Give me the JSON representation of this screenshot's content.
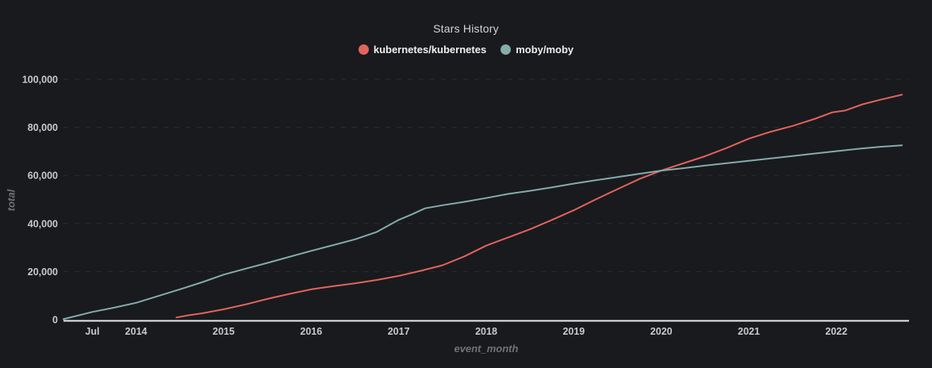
{
  "title": "Stars History",
  "axes": {
    "y_label": "total",
    "x_label": "event_month"
  },
  "colors": {
    "background": "#191a1e",
    "title": "#d4d5d7",
    "legend_text": "#efefef",
    "tick_text": "#c8c9cb",
    "axis_line": "#ecebeb",
    "gridline": "#2c2d31",
    "axis_name": "#717276",
    "kubernetes": "#e0645c",
    "moby": "#83acaa"
  },
  "chart_data": {
    "type": "line",
    "title": "Stars History",
    "xlabel": "event_month",
    "ylabel": "total",
    "xlim": [
      2013.17,
      2022.83
    ],
    "ylim": [
      0,
      100000
    ],
    "grid": "horizontal-dashed",
    "legend_position": "top-center",
    "y_ticks": [
      {
        "value": 0,
        "label": "0"
      },
      {
        "value": 20000,
        "label": "20,000"
      },
      {
        "value": 40000,
        "label": "40,000"
      },
      {
        "value": 60000,
        "label": "60,000"
      },
      {
        "value": 80000,
        "label": "80,000"
      },
      {
        "value": 100000,
        "label": "100,000"
      }
    ],
    "x_ticks": [
      {
        "t": 2013.5,
        "label": "Jul"
      },
      {
        "t": 2014,
        "label": "2014"
      },
      {
        "t": 2015,
        "label": "2015"
      },
      {
        "t": 2016,
        "label": "2016"
      },
      {
        "t": 2017,
        "label": "2017"
      },
      {
        "t": 2018,
        "label": "2018"
      },
      {
        "t": 2019,
        "label": "2019"
      },
      {
        "t": 2020,
        "label": "2020"
      },
      {
        "t": 2021,
        "label": "2021"
      },
      {
        "t": 2022,
        "label": "2022"
      }
    ],
    "series": [
      {
        "name": "kubernetes/kubernetes",
        "color": "#e0645c",
        "points": [
          [
            2014.46,
            900
          ],
          [
            2014.6,
            1800
          ],
          [
            2014.75,
            2600
          ],
          [
            2015.0,
            4300
          ],
          [
            2015.25,
            6300
          ],
          [
            2015.5,
            8600
          ],
          [
            2015.75,
            10700
          ],
          [
            2016.0,
            12600
          ],
          [
            2016.25,
            13900
          ],
          [
            2016.5,
            15100
          ],
          [
            2016.75,
            16500
          ],
          [
            2017.0,
            18200
          ],
          [
            2017.25,
            20300
          ],
          [
            2017.5,
            22600
          ],
          [
            2017.75,
            26300
          ],
          [
            2018.0,
            30800
          ],
          [
            2018.25,
            34200
          ],
          [
            2018.5,
            37600
          ],
          [
            2018.75,
            41500
          ],
          [
            2019.0,
            45500
          ],
          [
            2019.25,
            50000
          ],
          [
            2019.5,
            54300
          ],
          [
            2019.75,
            58500
          ],
          [
            2020.0,
            62000
          ],
          [
            2020.25,
            65000
          ],
          [
            2020.5,
            68000
          ],
          [
            2020.75,
            71500
          ],
          [
            2021.0,
            75300
          ],
          [
            2021.25,
            78200
          ],
          [
            2021.5,
            80600
          ],
          [
            2021.75,
            83500
          ],
          [
            2021.95,
            86200
          ],
          [
            2022.1,
            87000
          ],
          [
            2022.3,
            89600
          ],
          [
            2022.5,
            91500
          ],
          [
            2022.75,
            93600
          ]
        ]
      },
      {
        "name": "moby/moby",
        "color": "#83acaa",
        "points": [
          [
            2013.17,
            200
          ],
          [
            2013.5,
            3200
          ],
          [
            2013.75,
            5000
          ],
          [
            2014.0,
            7000
          ],
          [
            2014.25,
            9800
          ],
          [
            2014.5,
            12600
          ],
          [
            2014.75,
            15500
          ],
          [
            2015.0,
            18700
          ],
          [
            2015.25,
            21200
          ],
          [
            2015.5,
            23600
          ],
          [
            2015.75,
            26100
          ],
          [
            2016.0,
            28600
          ],
          [
            2016.25,
            31000
          ],
          [
            2016.5,
            33400
          ],
          [
            2016.75,
            36500
          ],
          [
            2017.0,
            41500
          ],
          [
            2017.15,
            43800
          ],
          [
            2017.3,
            46300
          ],
          [
            2017.5,
            47600
          ],
          [
            2017.75,
            49000
          ],
          [
            2018.0,
            50600
          ],
          [
            2018.25,
            52300
          ],
          [
            2018.5,
            53600
          ],
          [
            2018.75,
            55000
          ],
          [
            2019.0,
            56600
          ],
          [
            2019.25,
            58000
          ],
          [
            2019.5,
            59300
          ],
          [
            2019.75,
            60700
          ],
          [
            2020.0,
            62000
          ],
          [
            2020.25,
            63000
          ],
          [
            2020.5,
            64100
          ],
          [
            2020.75,
            65100
          ],
          [
            2021.0,
            66100
          ],
          [
            2021.25,
            67100
          ],
          [
            2021.5,
            68100
          ],
          [
            2021.75,
            69100
          ],
          [
            2022.0,
            70100
          ],
          [
            2022.25,
            71100
          ],
          [
            2022.5,
            71900
          ],
          [
            2022.75,
            72500
          ]
        ]
      }
    ]
  }
}
